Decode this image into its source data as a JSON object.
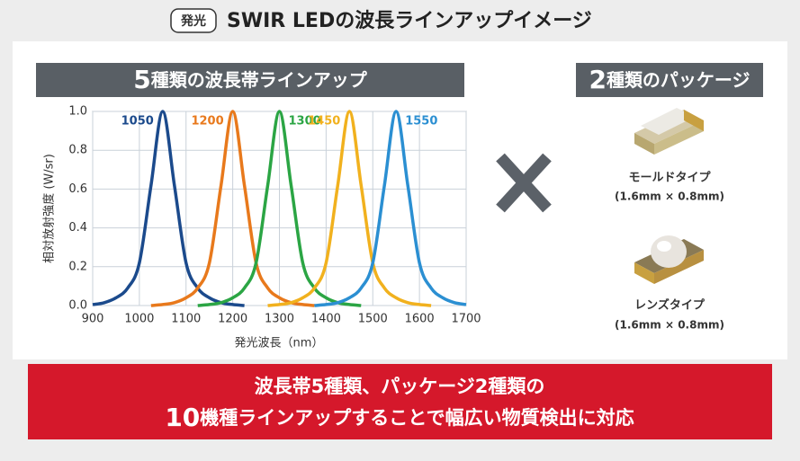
{
  "header": {
    "badge": "発光",
    "title": "SWIR LEDの波長ラインアップイメージ"
  },
  "left_heading": {
    "number": "5",
    "text": "種類の波長帯ラインアップ"
  },
  "chart_data": {
    "type": "line",
    "x": [
      900,
      925,
      950,
      975,
      1000,
      1025,
      1050,
      1075,
      1100,
      1125,
      1150,
      1175,
      1200,
      1225,
      1250,
      1275,
      1300,
      1325,
      1350,
      1375,
      1400,
      1425,
      1450,
      1475,
      1500,
      1525,
      1550,
      1575,
      1600,
      1625,
      1650,
      1675,
      1700
    ],
    "series": [
      {
        "name": "1050",
        "color": "#1b4a8c",
        "values": [
          0.005,
          0.015,
          0.04,
          0.09,
          0.22,
          0.62,
          1,
          0.62,
          0.22,
          0.09,
          0.04,
          0.015,
          0.005,
          0,
          null,
          null,
          null,
          null,
          null,
          null,
          null,
          null,
          null,
          null,
          null,
          null,
          null,
          null,
          null,
          null,
          null,
          null,
          null
        ]
      },
      {
        "name": "1200",
        "color": "#e8791c",
        "values": [
          null,
          null,
          null,
          null,
          null,
          0,
          0.005,
          0.015,
          0.04,
          0.09,
          0.22,
          0.62,
          1,
          0.62,
          0.22,
          0.09,
          0.04,
          0.015,
          0.005,
          0,
          null,
          null,
          null,
          null,
          null,
          null,
          null,
          null,
          null,
          null,
          null,
          null,
          null
        ]
      },
      {
        "name": "1300",
        "color": "#2ba544",
        "values": [
          null,
          null,
          null,
          null,
          null,
          null,
          null,
          null,
          null,
          0,
          0.005,
          0.015,
          0.04,
          0.09,
          0.22,
          0.62,
          1,
          0.62,
          0.22,
          0.09,
          0.04,
          0.015,
          0.005,
          0,
          null,
          null,
          null,
          null,
          null,
          null,
          null,
          null,
          null
        ]
      },
      {
        "name": "1450",
        "color": "#f1b11e",
        "values": [
          null,
          null,
          null,
          null,
          null,
          null,
          null,
          null,
          null,
          null,
          null,
          null,
          null,
          null,
          null,
          0,
          0.005,
          0.015,
          0.04,
          0.09,
          0.22,
          0.62,
          1,
          0.62,
          0.22,
          0.09,
          0.04,
          0.015,
          0.005,
          0,
          null,
          null,
          null
        ]
      },
      {
        "name": "1550",
        "color": "#2b8fd2",
        "values": [
          null,
          null,
          null,
          null,
          null,
          null,
          null,
          null,
          null,
          null,
          null,
          null,
          null,
          null,
          null,
          null,
          null,
          null,
          null,
          0,
          0.005,
          0.015,
          0.04,
          0.09,
          0.22,
          0.62,
          1,
          0.62,
          0.22,
          0.09,
          0.04,
          0.015,
          0.005
        ]
      }
    ],
    "xlim": [
      900,
      1700
    ],
    "xticks": [
      900,
      1000,
      1100,
      1200,
      1300,
      1400,
      1500,
      1600,
      1700
    ],
    "ylim": [
      0,
      1
    ],
    "yticks": [
      {
        "value": 0,
        "label": "0.0"
      },
      0.2,
      0.4,
      0.6,
      0.8,
      {
        "value": 1,
        "label": "1.0"
      }
    ],
    "grid": true,
    "x_label": "発光波長（nm）",
    "y_label": "相対放射強度 (W/sr)"
  },
  "right_heading": {
    "number": "2",
    "text": "種類のパッケージ"
  },
  "packages": [
    {
      "name": "モールドタイプ",
      "size": "(1.6mm × 0.8mm)"
    },
    {
      "name": "レンズタイプ",
      "size": "(1.6mm × 0.8mm)"
    }
  ],
  "banner": {
    "line1": "波長帯5種類、パッケージ2種類の",
    "line2_number": "10",
    "line2_text": "機種ラインアップすることで幅広い物質検出に対応"
  }
}
